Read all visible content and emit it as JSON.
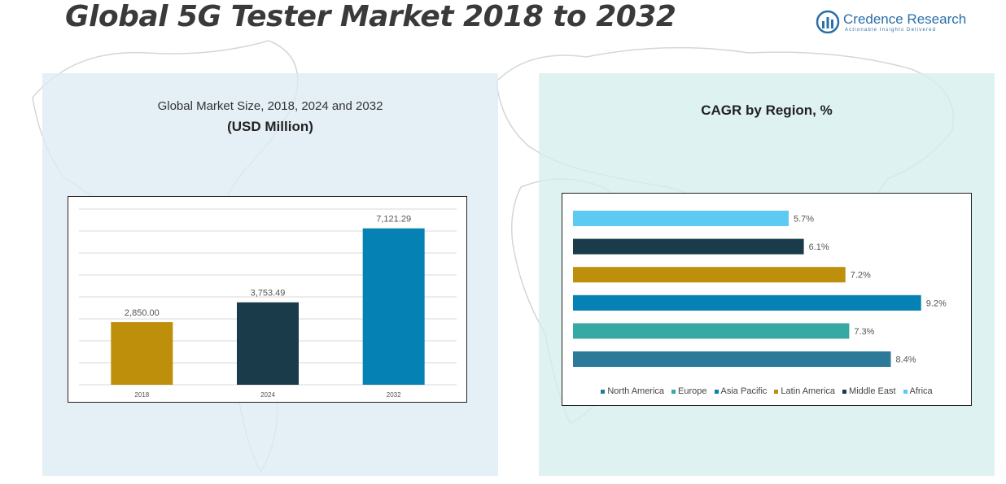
{
  "header": {
    "title": "Global 5G Tester Market 2018 to 2032",
    "logo_name": "Credence Research",
    "logo_tagline": "Actionable Insights Delivered"
  },
  "left_panel": {
    "title": "Global Market Size, 2018, 2024 and 2032",
    "subtitle": "(USD Million)"
  },
  "right_panel": {
    "title": "CAGR by Region, %"
  },
  "chart_data": [
    {
      "type": "bar",
      "title": "Global Market Size, 2018, 2024 and 2032",
      "subtitle": "(USD Million)",
      "categories": [
        "2018",
        "2024",
        "2032"
      ],
      "values": [
        2850.0,
        3753.49,
        7121.29
      ],
      "data_labels": [
        "2,850.00",
        "3,753.49",
        "7,121.29"
      ],
      "colors": [
        "#be8f0a",
        "#1a3b4a",
        "#0582b3"
      ],
      "ylim": [
        0,
        8000
      ],
      "grid": true
    },
    {
      "type": "bar",
      "orientation": "horizontal",
      "title": "CAGR by Region, %",
      "categories": [
        "Africa",
        "Middle East",
        "Latin America",
        "Asia Pacific",
        "Europe",
        "North America"
      ],
      "values": [
        5.7,
        6.1,
        7.2,
        9.2,
        7.3,
        8.4
      ],
      "data_labels": [
        "5.7%",
        "6.1%",
        "7.2%",
        "9.2%",
        "7.3%",
        "8.4%"
      ],
      "colors": [
        "#5ccaf3",
        "#1a3b4a",
        "#be8f0a",
        "#0582b3",
        "#37a9a4",
        "#2c7a9a"
      ],
      "xlim": [
        0,
        9.4
      ],
      "legend": {
        "position": "bottom",
        "items": [
          {
            "label": "North America",
            "color": "#2c7a9a"
          },
          {
            "label": "Europe",
            "color": "#37a9a4"
          },
          {
            "label": "Asia Pacific",
            "color": "#0582b3"
          },
          {
            "label": "Latin America",
            "color": "#be8f0a"
          },
          {
            "label": "Middle East",
            "color": "#1a3b4a"
          },
          {
            "label": "Africa",
            "color": "#5ccaf3"
          }
        ]
      }
    }
  ]
}
